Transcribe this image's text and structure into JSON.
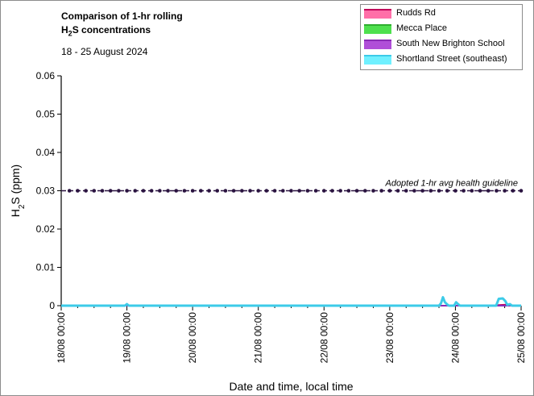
{
  "chart_data": {
    "type": "line",
    "title_line1": "Comparison of 1-hr rolling",
    "title_line2_main": "H",
    "title_line2_sub": "2",
    "title_line2_rest": "S concentrations",
    "subtitle": "18 - 25 August 2024",
    "xlabel": "Date and time, local time",
    "ylabel_main": "H",
    "ylabel_sub": "2",
    "ylabel_rest": "S (ppm)",
    "ylim": [
      0,
      0.06
    ],
    "yticks": [
      "0",
      "0.01",
      "0.02",
      "0.03",
      "0.04",
      "0.05",
      "0.06"
    ],
    "ytick_values": [
      0,
      0.01,
      0.02,
      0.03,
      0.04,
      0.05,
      0.06
    ],
    "x_range_days": [
      0,
      7
    ],
    "xticks": [
      "18/08 00:00",
      "19/08 00:00",
      "20/08 00:00",
      "21/08 00:00",
      "22/08 00:00",
      "23/08 00:00",
      "24/08 00:00",
      "25/08 00:00"
    ],
    "grid": "none",
    "legend_placement": "top-right",
    "guideline": {
      "value": 0.03,
      "label": "Adopted 1-hr avg health guideline",
      "color": "#2a1340"
    },
    "series": [
      {
        "name": "Rudds Rd",
        "color": "#ff6fa8",
        "line_color": "#c0005a",
        "points": [
          [
            0,
            0
          ],
          [
            6.5,
            0
          ],
          [
            6.8,
            0.0003
          ],
          [
            6.9,
            0
          ],
          [
            7,
            0
          ]
        ]
      },
      {
        "name": "Mecca Place",
        "color": "#4ee04e",
        "line_color": "#2fae2f",
        "points": [
          [
            0,
            0
          ],
          [
            7,
            0
          ]
        ]
      },
      {
        "name": "South New Brighton School",
        "color": "#b04ed8",
        "line_color": "#8a2bb5",
        "points": [
          [
            0,
            0
          ],
          [
            7,
            0
          ]
        ]
      },
      {
        "name": "Shortland Street (southeast)",
        "color": "#6ff0ff",
        "line_color": "#3ccbe8",
        "points": [
          [
            0,
            0
          ],
          [
            0.97,
            0
          ],
          [
            1.0,
            0.0004
          ],
          [
            1.03,
            0
          ],
          [
            5.75,
            0
          ],
          [
            5.78,
            0.0006
          ],
          [
            5.81,
            0.0022
          ],
          [
            5.84,
            0.0009
          ],
          [
            5.87,
            0.0004
          ],
          [
            5.9,
            0
          ],
          [
            5.98,
            0
          ],
          [
            6.01,
            0.0009
          ],
          [
            6.04,
            0.0004
          ],
          [
            6.07,
            0
          ],
          [
            6.62,
            0
          ],
          [
            6.66,
            0.0018
          ],
          [
            6.72,
            0.0019
          ],
          [
            6.76,
            0.0012
          ],
          [
            6.79,
            0.0002
          ],
          [
            6.83,
            0.0004
          ],
          [
            6.86,
            0
          ],
          [
            7,
            0
          ]
        ]
      }
    ]
  }
}
